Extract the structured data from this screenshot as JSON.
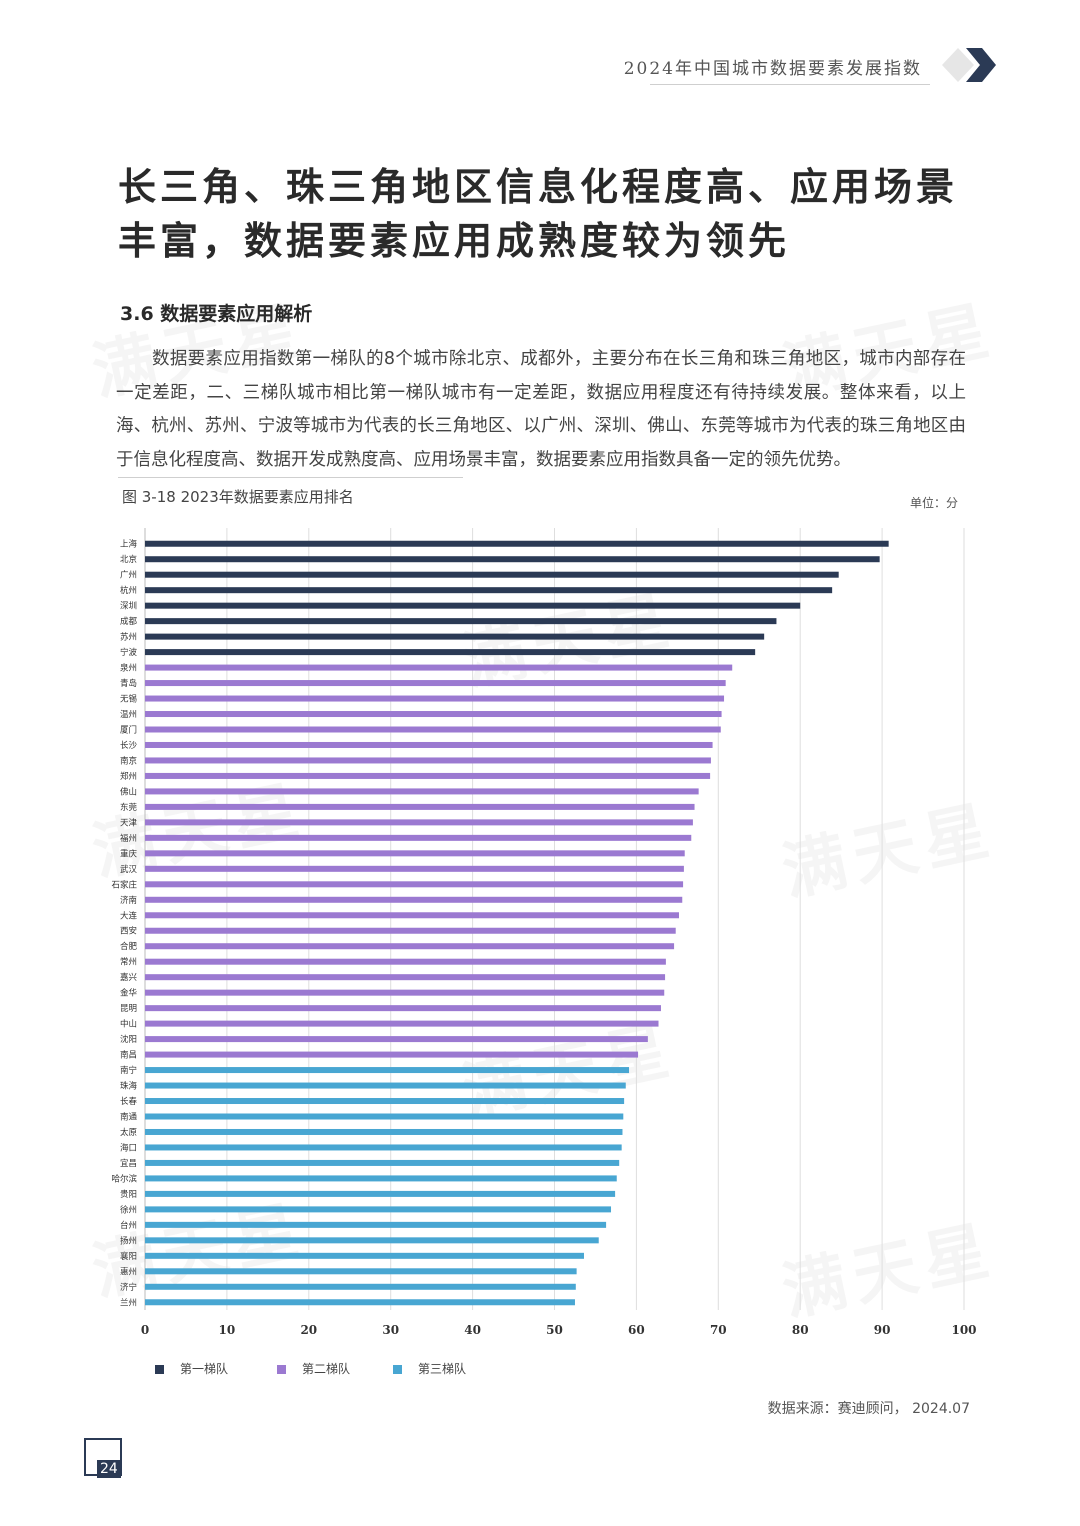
{
  "header": {
    "title": "2024年中国城市数据要素发展指数"
  },
  "headline": "长三角、珠三角地区信息化程度高、应用场景丰富，数据要素应用成熟度较为领先",
  "section_title": "3.6 数据要素应用解析",
  "paragraph": "数据要素应用指数第一梯队的8个城市除北京、成都外，主要分布在长三角和珠三角地区，城市内部存在一定差距，二、三梯队城市相比第一梯队城市有一定差距，数据应用程度还有待持续发展。整体来看，以上海、杭州、苏州、宁波等城市为代表的长三角地区、以广州、深圳、佛山、东莞等城市为代表的珠三角地区由于信息化程度高、数据开发成熟度高、应用场景丰富，数据要素应用指数具备一定的领先优势。",
  "figure_title": "图 3-18  2023年数据要素应用排名",
  "unit": "单位：分",
  "source": "数据来源：赛迪顾问， 2024.07",
  "page_number": "24",
  "watermark": "满天星",
  "chart_data": {
    "type": "bar",
    "orientation": "horizontal",
    "xlim": [
      0,
      100
    ],
    "xticks": [
      0,
      10,
      20,
      30,
      40,
      50,
      60,
      70,
      80,
      90,
      100
    ],
    "grid": "vertical",
    "legend_position": "bottom",
    "series": [
      {
        "name": "第一梯队",
        "color": "#2b3a55",
        "categories": [
          "上海",
          "北京",
          "广州",
          "杭州",
          "深圳",
          "成都",
          "苏州",
          "宁波"
        ],
        "values": [
          90.8,
          89.7,
          84.7,
          83.9,
          80.0,
          77.1,
          75.6,
          74.5
        ]
      },
      {
        "name": "第二梯队",
        "color": "#9b79d1",
        "categories": [
          "泉州",
          "青岛",
          "无锡",
          "温州",
          "厦门",
          "长沙",
          "南京",
          "郑州",
          "佛山",
          "东莞",
          "天津",
          "福州",
          "重庆",
          "武汉",
          "石家庄",
          "济南",
          "大连",
          "西安",
          "合肥",
          "常州",
          "嘉兴",
          "金华",
          "昆明",
          "中山",
          "沈阳",
          "南昌"
        ],
        "values": [
          71.7,
          70.9,
          70.7,
          70.4,
          70.3,
          69.3,
          69.1,
          69.0,
          67.6,
          67.1,
          66.9,
          66.7,
          65.9,
          65.8,
          65.7,
          65.6,
          65.2,
          64.8,
          64.6,
          63.6,
          63.5,
          63.4,
          63.0,
          62.7,
          61.4,
          60.2
        ]
      },
      {
        "name": "第三梯队",
        "color": "#48a6d2",
        "categories": [
          "南宁",
          "珠海",
          "长春",
          "南通",
          "太原",
          "海口",
          "宜昌",
          "哈尔滨",
          "贵阳",
          "徐州",
          "台州",
          "扬州",
          "襄阳",
          "惠州",
          "济宁",
          "兰州"
        ],
        "values": [
          59.1,
          58.7,
          58.5,
          58.4,
          58.3,
          58.2,
          57.9,
          57.6,
          57.4,
          56.9,
          56.3,
          55.4,
          53.6,
          52.7,
          52.6,
          52.5
        ]
      }
    ]
  }
}
